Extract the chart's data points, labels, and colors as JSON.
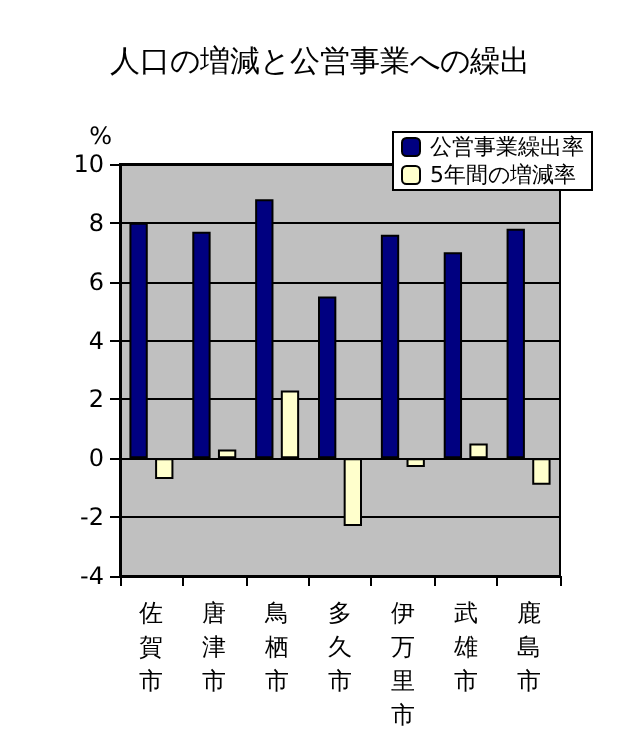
{
  "chart_data": {
    "type": "bar",
    "title": "人口の増減と公営事業への繰出",
    "ylabel": "%",
    "categories": [
      "佐賀市",
      "唐津市",
      "鳥栖市",
      "多久市",
      "伊万里市",
      "武雄市",
      "鹿島市"
    ],
    "series": [
      {
        "name": "公営事業繰出率",
        "color": "#000080",
        "values": [
          8.0,
          7.7,
          8.8,
          5.5,
          7.6,
          7.0,
          7.8
        ]
      },
      {
        "name": "5年間の増減率",
        "color": "#ffffcc",
        "values": [
          -0.7,
          0.3,
          2.3,
          -2.3,
          -0.3,
          0.5,
          -0.9
        ]
      }
    ],
    "ylim": [
      -4,
      10
    ],
    "yticks": [
      -4,
      -2,
      0,
      2,
      4,
      6,
      8,
      10
    ],
    "grid": "y",
    "legend": "top right"
  }
}
